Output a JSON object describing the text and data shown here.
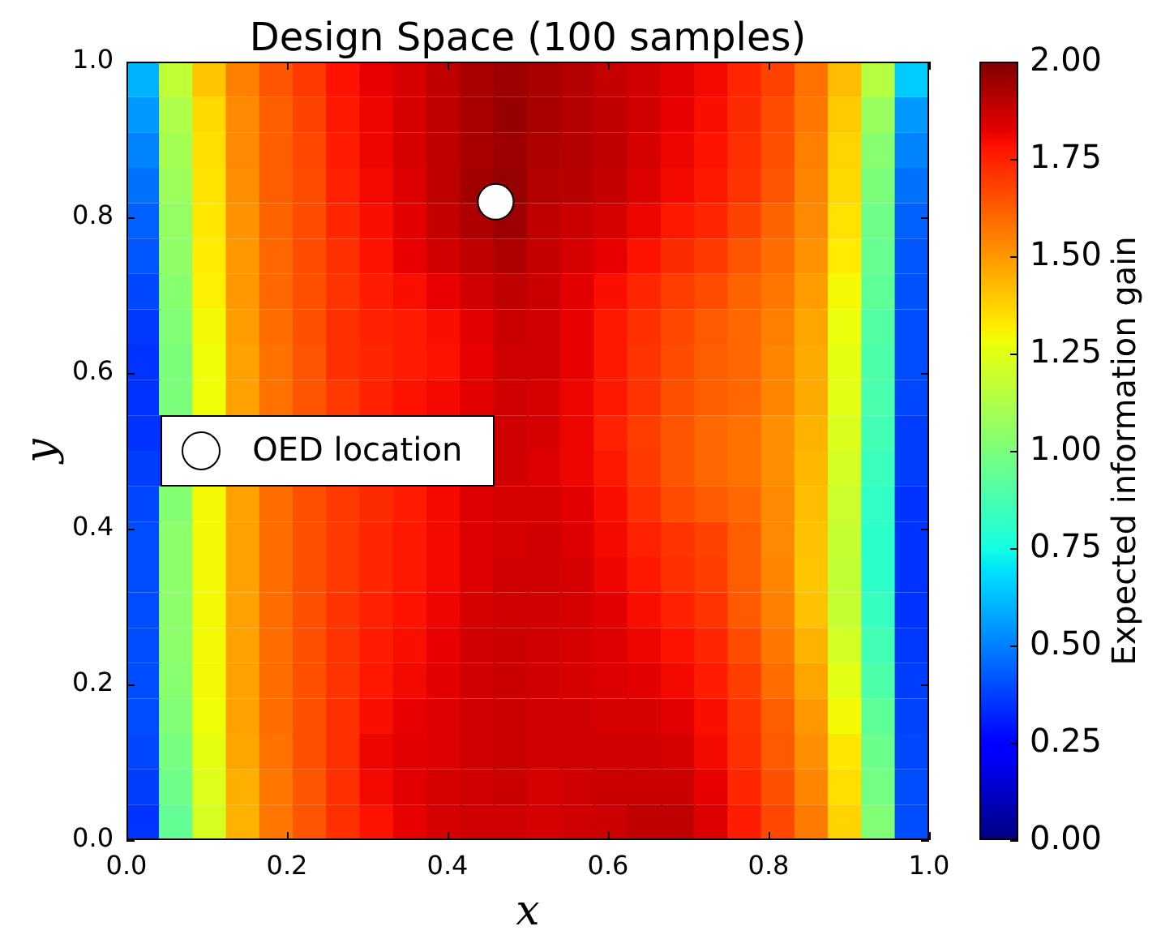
{
  "chart_data": {
    "type": "heatmap",
    "title": "Design Space (100 samples)",
    "xlabel": "x",
    "ylabel": "y",
    "clabel": "Expected information gain",
    "x": [
      0.0208,
      0.0625,
      0.1042,
      0.1458,
      0.1875,
      0.2292,
      0.2708,
      0.3125,
      0.3542,
      0.3958,
      0.4375,
      0.4792,
      0.5208,
      0.5625,
      0.6042,
      0.6458,
      0.6875,
      0.7292,
      0.7708,
      0.8125,
      0.8542,
      0.8958,
      0.9375,
      0.9792
    ],
    "xlim": [
      0,
      1
    ],
    "ylim": [
      0,
      1
    ],
    "xticks": [
      {
        "value": 0,
        "label": "0.0"
      },
      0.2,
      0.4,
      0.6,
      0.8,
      {
        "value": 1,
        "label": "1.0"
      }
    ],
    "yticks": [
      {
        "value": 0,
        "label": "0.0"
      },
      0.2,
      0.4,
      0.6,
      0.8,
      {
        "value": 1,
        "label": "1.0"
      }
    ],
    "clim": [
      0,
      2
    ],
    "cticks": [
      {
        "value": 0,
        "label": "0.00"
      },
      0.25,
      {
        "value": 0.5,
        "label": "0.50"
      },
      0.75,
      {
        "value": 1,
        "label": "1.00"
      },
      1.25,
      {
        "value": 1.5,
        "label": "1.50"
      },
      1.75,
      {
        "value": 2,
        "label": "2.00"
      }
    ],
    "cells": [
      [
        0.6,
        1.17,
        1.4,
        1.55,
        1.64,
        1.7,
        1.78,
        1.82,
        1.85,
        1.89,
        1.93,
        1.95,
        1.93,
        1.91,
        1.88,
        1.86,
        1.83,
        1.8,
        1.74,
        1.68,
        1.58,
        1.42,
        1.14,
        0.65
      ],
      [
        0.55,
        1.12,
        1.36,
        1.53,
        1.62,
        1.68,
        1.77,
        1.81,
        1.85,
        1.89,
        1.93,
        1.96,
        1.93,
        1.91,
        1.89,
        1.86,
        1.82,
        1.79,
        1.73,
        1.66,
        1.57,
        1.39,
        1.07,
        0.55
      ],
      [
        0.51,
        1.1,
        1.35,
        1.53,
        1.62,
        1.67,
        1.76,
        1.81,
        1.85,
        1.89,
        1.93,
        1.95,
        1.92,
        1.91,
        1.89,
        1.85,
        1.81,
        1.78,
        1.72,
        1.65,
        1.55,
        1.37,
        1.03,
        0.51
      ],
      [
        0.47,
        1.08,
        1.34,
        1.52,
        1.62,
        1.66,
        1.75,
        1.8,
        1.84,
        1.89,
        1.94,
        1.96,
        1.91,
        1.9,
        1.88,
        1.84,
        1.8,
        1.77,
        1.71,
        1.64,
        1.54,
        1.36,
        1.0,
        0.47
      ],
      [
        0.44,
        1.06,
        1.33,
        1.51,
        1.61,
        1.66,
        1.74,
        1.79,
        1.83,
        1.88,
        1.92,
        1.95,
        1.89,
        1.87,
        1.85,
        1.81,
        1.77,
        1.74,
        1.68,
        1.61,
        1.53,
        1.34,
        0.97,
        0.44
      ],
      [
        0.42,
        1.05,
        1.32,
        1.5,
        1.6,
        1.66,
        1.72,
        1.78,
        1.82,
        1.86,
        1.89,
        1.92,
        1.88,
        1.85,
        1.82,
        1.78,
        1.73,
        1.7,
        1.64,
        1.59,
        1.51,
        1.32,
        0.95,
        0.42
      ],
      [
        0.39,
        1.03,
        1.31,
        1.5,
        1.6,
        1.65,
        1.71,
        1.76,
        1.79,
        1.82,
        1.86,
        1.89,
        1.87,
        1.83,
        1.79,
        1.74,
        1.69,
        1.66,
        1.61,
        1.57,
        1.49,
        1.29,
        0.93,
        0.41
      ],
      [
        0.36,
        1.01,
        1.29,
        1.49,
        1.59,
        1.65,
        1.72,
        1.75,
        1.76,
        1.79,
        1.83,
        1.87,
        1.86,
        1.82,
        1.77,
        1.72,
        1.67,
        1.63,
        1.6,
        1.55,
        1.47,
        1.27,
        0.9,
        0.4
      ],
      [
        0.35,
        1.0,
        1.28,
        1.48,
        1.58,
        1.64,
        1.72,
        1.74,
        1.76,
        1.78,
        1.82,
        1.86,
        1.86,
        1.82,
        1.77,
        1.71,
        1.66,
        1.62,
        1.6,
        1.54,
        1.46,
        1.26,
        0.89,
        0.4
      ],
      [
        0.35,
        1.0,
        1.28,
        1.48,
        1.58,
        1.64,
        1.7,
        1.75,
        1.78,
        1.8,
        1.83,
        1.86,
        1.85,
        1.81,
        1.77,
        1.71,
        1.65,
        1.62,
        1.6,
        1.54,
        1.46,
        1.25,
        0.88,
        0.39
      ],
      [
        0.35,
        null,
        null,
        null,
        null,
        null,
        null,
        null,
        null,
        null,
        null,
        1.86,
        1.85,
        1.81,
        1.75,
        1.69,
        1.64,
        1.6,
        1.58,
        1.52,
        1.44,
        1.23,
        0.86,
        0.37
      ],
      [
        0.37,
        null,
        null,
        null,
        null,
        null,
        null,
        null,
        null,
        null,
        null,
        1.86,
        1.84,
        1.81,
        1.77,
        1.7,
        1.64,
        1.6,
        1.58,
        1.52,
        1.43,
        1.21,
        0.84,
        0.37
      ],
      [
        0.39,
        1.02,
        1.29,
        1.48,
        1.59,
        1.65,
        1.7,
        1.73,
        1.76,
        1.8,
        1.84,
        1.85,
        1.85,
        1.83,
        1.79,
        1.72,
        1.66,
        1.63,
        1.6,
        1.53,
        1.42,
        1.19,
        0.82,
        0.35
      ],
      [
        0.4,
        1.04,
        1.29,
        1.48,
        1.59,
        1.65,
        1.7,
        1.74,
        1.77,
        1.8,
        1.84,
        1.85,
        1.86,
        1.84,
        1.8,
        1.75,
        1.71,
        1.68,
        1.62,
        1.53,
        1.41,
        1.18,
        0.81,
        0.35
      ],
      [
        0.4,
        1.04,
        1.29,
        1.48,
        1.59,
        1.65,
        1.7,
        1.74,
        1.77,
        1.8,
        1.84,
        1.86,
        1.86,
        1.85,
        1.81,
        1.77,
        1.72,
        1.69,
        1.62,
        1.54,
        1.4,
        1.17,
        0.81,
        0.35
      ],
      [
        0.4,
        1.04,
        1.29,
        1.48,
        1.59,
        1.65,
        1.71,
        1.75,
        1.78,
        1.81,
        1.85,
        1.86,
        1.86,
        1.85,
        1.83,
        1.79,
        1.75,
        1.71,
        1.63,
        1.55,
        1.41,
        1.18,
        0.83,
        0.35
      ],
      [
        0.4,
        1.04,
        1.29,
        1.48,
        1.59,
        1.65,
        1.71,
        1.76,
        1.79,
        1.82,
        1.86,
        1.87,
        1.86,
        1.85,
        1.84,
        1.81,
        1.78,
        1.74,
        1.66,
        1.57,
        1.44,
        1.21,
        0.86,
        0.36
      ],
      [
        0.4,
        1.03,
        1.29,
        1.48,
        1.59,
        1.65,
        1.71,
        1.77,
        1.8,
        1.83,
        1.86,
        1.87,
        1.86,
        1.85,
        1.84,
        1.83,
        1.8,
        1.76,
        1.69,
        1.59,
        1.47,
        1.25,
        0.89,
        0.37
      ],
      [
        0.4,
        1.01,
        1.28,
        1.48,
        1.59,
        1.65,
        1.72,
        1.79,
        1.82,
        1.84,
        1.86,
        1.87,
        1.86,
        1.86,
        1.85,
        1.85,
        1.83,
        1.79,
        1.71,
        1.62,
        1.5,
        1.29,
        0.93,
        0.38
      ],
      [
        0.39,
        0.99,
        1.26,
        1.47,
        1.58,
        1.65,
        1.72,
        1.81,
        1.83,
        1.84,
        1.86,
        1.87,
        1.86,
        1.86,
        1.86,
        1.86,
        1.85,
        1.8,
        1.72,
        1.63,
        1.52,
        1.33,
        0.96,
        0.39
      ],
      [
        0.37,
        0.97,
        1.24,
        1.45,
        1.57,
        1.64,
        1.72,
        1.8,
        1.83,
        1.85,
        1.86,
        1.87,
        1.85,
        1.86,
        1.87,
        1.87,
        1.87,
        1.82,
        1.74,
        1.65,
        1.54,
        1.35,
        0.98,
        0.4
      ],
      [
        0.35,
        0.94,
        1.22,
        1.44,
        1.57,
        1.64,
        1.72,
        1.78,
        1.82,
        1.85,
        1.86,
        1.86,
        1.85,
        1.86,
        1.87,
        1.89,
        1.89,
        1.84,
        1.76,
        1.67,
        1.56,
        1.37,
        1.01,
        0.4
      ]
    ],
    "legend": "left",
    "series": [
      {
        "type": "scatter",
        "marker": "circle",
        "name": "OED location",
        "color": "#ffffff",
        "x": [
          0.46
        ],
        "values": [
          0.82
        ]
      }
    ]
  }
}
